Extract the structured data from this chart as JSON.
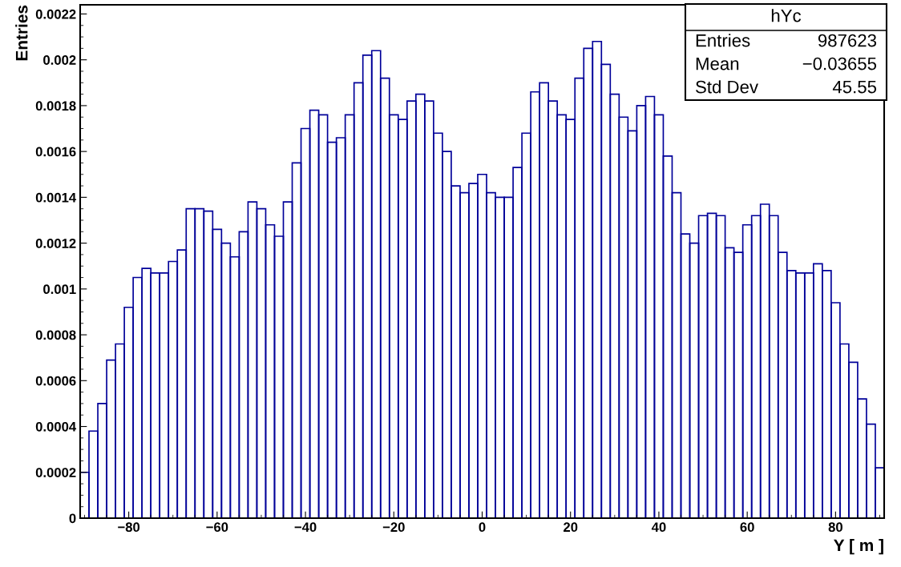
{
  "chart_data": {
    "type": "histogram",
    "xlabel": "Y [ m ]",
    "ylabel": "Entries",
    "bins": [
      -91,
      -89,
      -87,
      -85,
      -83,
      -81,
      -79,
      -77,
      -75,
      -73,
      -71,
      -69,
      -67,
      -65,
      -63,
      -61,
      -59,
      -57,
      -55,
      -53,
      -51,
      -49,
      -47,
      -45,
      -43,
      -41,
      -39,
      -37,
      -35,
      -33,
      -31,
      -29,
      -27,
      -25,
      -23,
      -21,
      -19,
      -17,
      -15,
      -13,
      -11,
      -9,
      -7,
      -5,
      -3,
      -1,
      1,
      3,
      5,
      7,
      9,
      11,
      13,
      15,
      17,
      19,
      21,
      23,
      25,
      27,
      29,
      31,
      33,
      35,
      37,
      39,
      41,
      43,
      45,
      47,
      49,
      51,
      53,
      55,
      57,
      59,
      61,
      63,
      65,
      67,
      69,
      71,
      73,
      75,
      77,
      79,
      81,
      83,
      85,
      87,
      89,
      91
    ],
    "values": [
      0.0002,
      0.00038,
      0.0005,
      0.00069,
      0.00076,
      0.00092,
      0.00105,
      0.00109,
      0.00107,
      0.00107,
      0.00112,
      0.00117,
      0.00135,
      0.00135,
      0.00134,
      0.00126,
      0.0012,
      0.00114,
      0.00125,
      0.00138,
      0.00135,
      0.00128,
      0.00123,
      0.00138,
      0.00155,
      0.0017,
      0.00178,
      0.00176,
      0.00164,
      0.00166,
      0.00176,
      0.0019,
      0.00202,
      0.00204,
      0.00192,
      0.00176,
      0.00174,
      0.00182,
      0.00185,
      0.00182,
      0.00168,
      0.0016,
      0.00145,
      0.00142,
      0.00146,
      0.0015,
      0.00142,
      0.0014,
      0.0014,
      0.00153,
      0.00168,
      0.00186,
      0.0019,
      0.00182,
      0.00176,
      0.00174,
      0.00192,
      0.00205,
      0.00208,
      0.00198,
      0.00185,
      0.00175,
      0.00169,
      0.0018,
      0.00184,
      0.00176,
      0.00158,
      0.00142,
      0.00124,
      0.0012,
      0.00132,
      0.00133,
      0.00132,
      0.00118,
      0.00116,
      0.00128,
      0.00132,
      0.00137,
      0.00132,
      0.00116,
      0.00108,
      0.00107,
      0.00107,
      0.00111,
      0.00108,
      0.00094,
      0.00076,
      0.00068,
      0.00052,
      0.00041,
      0.00022
    ],
    "color": "#000099",
    "xlim": [
      -91,
      91
    ],
    "ylim": [
      0,
      0.00224
    ],
    "xticks": [
      {
        "value": -80,
        "label": "−80"
      },
      {
        "value": -60,
        "label": "−60"
      },
      {
        "value": -40,
        "label": "−40"
      },
      {
        "value": -20,
        "label": "−20"
      },
      0,
      20,
      40,
      60,
      80
    ],
    "yticks": [
      0,
      0.0002,
      0.0004,
      0.0006,
      0.0008,
      0.001,
      0.0012,
      0.0014,
      0.0016,
      0.0018,
      0.002,
      0.0022
    ],
    "grid": false,
    "legend": false,
    "annotations": [
      "hYc",
      "Entries",
      "987623",
      "Mean",
      "−0.03655",
      "Std Dev",
      "45.55"
    ]
  }
}
